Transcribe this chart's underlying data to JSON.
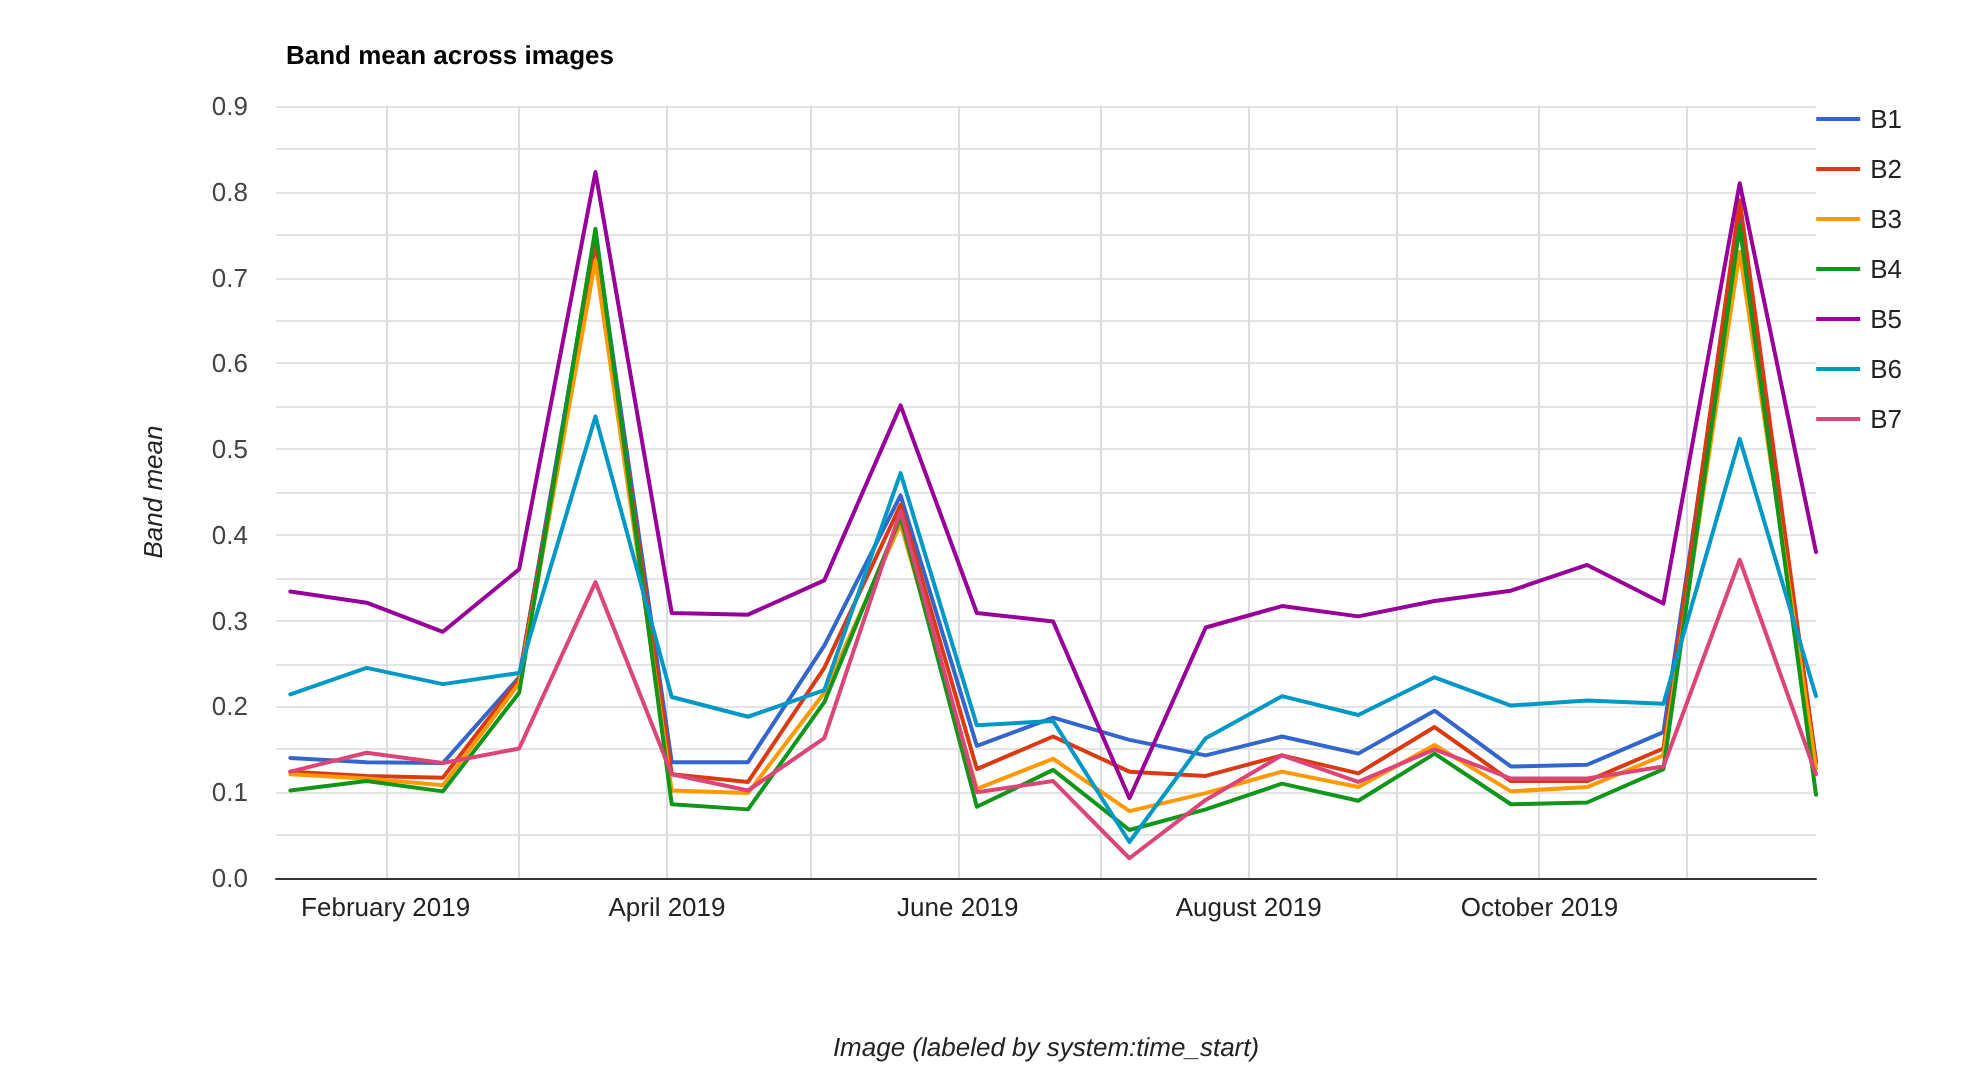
{
  "chart_data": {
    "type": "line",
    "title": "Band mean across images",
    "xlabel": "Image (labeled by system:time_start)",
    "ylabel": "Band mean",
    "x": [
      "2019-01-12",
      "2019-01-28",
      "2019-02-13",
      "2019-03-01",
      "2019-03-17",
      "2019-04-02",
      "2019-04-18",
      "2019-05-04",
      "2019-05-20",
      "2019-06-05",
      "2019-06-21",
      "2019-07-07",
      "2019-07-23",
      "2019-08-08",
      "2019-08-24",
      "2019-09-09",
      "2019-09-25",
      "2019-10-11",
      "2019-10-27",
      "2019-11-12",
      "2019-11-28"
    ],
    "series": [
      {
        "name": "B1",
        "color": "#3366cc",
        "values": [
          0.14,
          0.135,
          0.134,
          0.234,
          0.75,
          0.135,
          0.135,
          0.271,
          0.446,
          0.154,
          0.187,
          0.161,
          0.143,
          0.165,
          0.145,
          0.195,
          0.13,
          0.132,
          0.17,
          0.77,
          0.135
        ]
      },
      {
        "name": "B2",
        "color": "#dc3912",
        "values": [
          0.124,
          0.119,
          0.117,
          0.232,
          0.74,
          0.121,
          0.112,
          0.245,
          0.435,
          0.127,
          0.165,
          0.124,
          0.119,
          0.143,
          0.122,
          0.176,
          0.113,
          0.113,
          0.151,
          0.79,
          0.135
        ]
      },
      {
        "name": "B3",
        "color": "#ff9900",
        "values": [
          0.121,
          0.116,
          0.108,
          0.227,
          0.72,
          0.102,
          0.099,
          0.216,
          0.413,
          0.104,
          0.139,
          0.078,
          0.099,
          0.124,
          0.106,
          0.155,
          0.101,
          0.106,
          0.143,
          0.73,
          0.128
        ]
      },
      {
        "name": "B4",
        "color": "#109618",
        "values": [
          0.102,
          0.113,
          0.101,
          0.216,
          0.757,
          0.086,
          0.08,
          0.205,
          0.421,
          0.083,
          0.126,
          0.056,
          0.08,
          0.11,
          0.09,
          0.145,
          0.086,
          0.088,
          0.127,
          0.76,
          0.097
        ]
      },
      {
        "name": "B5",
        "color": "#990099",
        "values": [
          0.334,
          0.321,
          0.287,
          0.36,
          0.823,
          0.309,
          0.307,
          0.347,
          0.551,
          0.309,
          0.299,
          0.093,
          0.292,
          0.317,
          0.305,
          0.323,
          0.335,
          0.365,
          0.32,
          0.81,
          0.38
        ]
      },
      {
        "name": "B6",
        "color": "#0099c6",
        "values": [
          0.214,
          0.245,
          0.226,
          0.239,
          0.538,
          0.211,
          0.188,
          0.219,
          0.472,
          0.178,
          0.183,
          0.042,
          0.163,
          0.212,
          0.19,
          0.234,
          0.201,
          0.207,
          0.203,
          0.512,
          0.212
        ]
      },
      {
        "name": "B7",
        "color": "#dd4477",
        "values": [
          0.124,
          0.146,
          0.134,
          0.151,
          0.345,
          0.121,
          0.102,
          0.163,
          0.428,
          0.1,
          0.113,
          0.023,
          0.091,
          0.143,
          0.112,
          0.15,
          0.116,
          0.116,
          0.13,
          0.371,
          0.121
        ]
      }
    ],
    "xlim": [
      "2019-01-09",
      "2019-11-28"
    ],
    "xticks": [
      {
        "value": "2019-02-01",
        "label": "February 2019"
      },
      {
        "value": "2019-03-01",
        "label": null
      },
      {
        "value": "2019-04-01",
        "label": "April 2019"
      },
      {
        "value": "2019-05-01",
        "label": null
      },
      {
        "value": "2019-06-01",
        "label": "June 2019"
      },
      {
        "value": "2019-07-01",
        "label": null
      },
      {
        "value": "2019-08-01",
        "label": "August 2019"
      },
      {
        "value": "2019-09-01",
        "label": null
      },
      {
        "value": "2019-10-01",
        "label": "October 2019"
      },
      {
        "value": "2019-11-01",
        "label": null
      }
    ],
    "ylim": [
      0,
      0.9
    ],
    "yticks": [
      {
        "value": 0,
        "label": "0.0"
      },
      {
        "value": 0.05,
        "label": null
      },
      {
        "value": 0.1,
        "label": "0.1"
      },
      {
        "value": 0.15,
        "label": null
      },
      {
        "value": 0.2,
        "label": "0.2"
      },
      {
        "value": 0.25,
        "label": null
      },
      {
        "value": 0.3,
        "label": "0.3"
      },
      {
        "value": 0.35,
        "label": null
      },
      {
        "value": 0.4,
        "label": "0.4"
      },
      {
        "value": 0.45,
        "label": null
      },
      {
        "value": 0.5,
        "label": "0.5"
      },
      {
        "value": 0.55,
        "label": null
      },
      {
        "value": 0.6,
        "label": "0.6"
      },
      {
        "value": 0.65,
        "label": null
      },
      {
        "value": 0.7,
        "label": "0.7"
      },
      {
        "value": 0.75,
        "label": null
      },
      {
        "value": 0.8,
        "label": "0.8"
      },
      {
        "value": 0.85,
        "label": null
      },
      {
        "value": 0.9,
        "label": "0.9"
      }
    ],
    "grid": true,
    "legend": "right",
    "marker": "none",
    "line_style": "solid"
  }
}
